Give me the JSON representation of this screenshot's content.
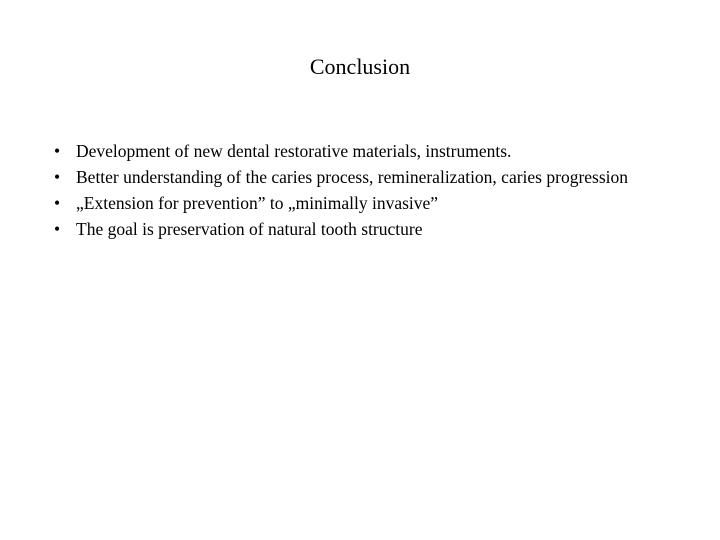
{
  "slide": {
    "title": "Conclusion",
    "title_fontsize": 22,
    "body_fontsize": 17.5,
    "font_family": "Times New Roman",
    "text_color": "#000000",
    "background_color": "#ffffff",
    "bullet_marker": "•",
    "bullets": [
      "Development of new dental restorative materials, instruments.",
      "Better understanding of the caries process, remineralization, caries progression",
      "„Extension for prevention” to „minimally invasive”",
      "The goal is preservation of natural tooth structure"
    ]
  }
}
